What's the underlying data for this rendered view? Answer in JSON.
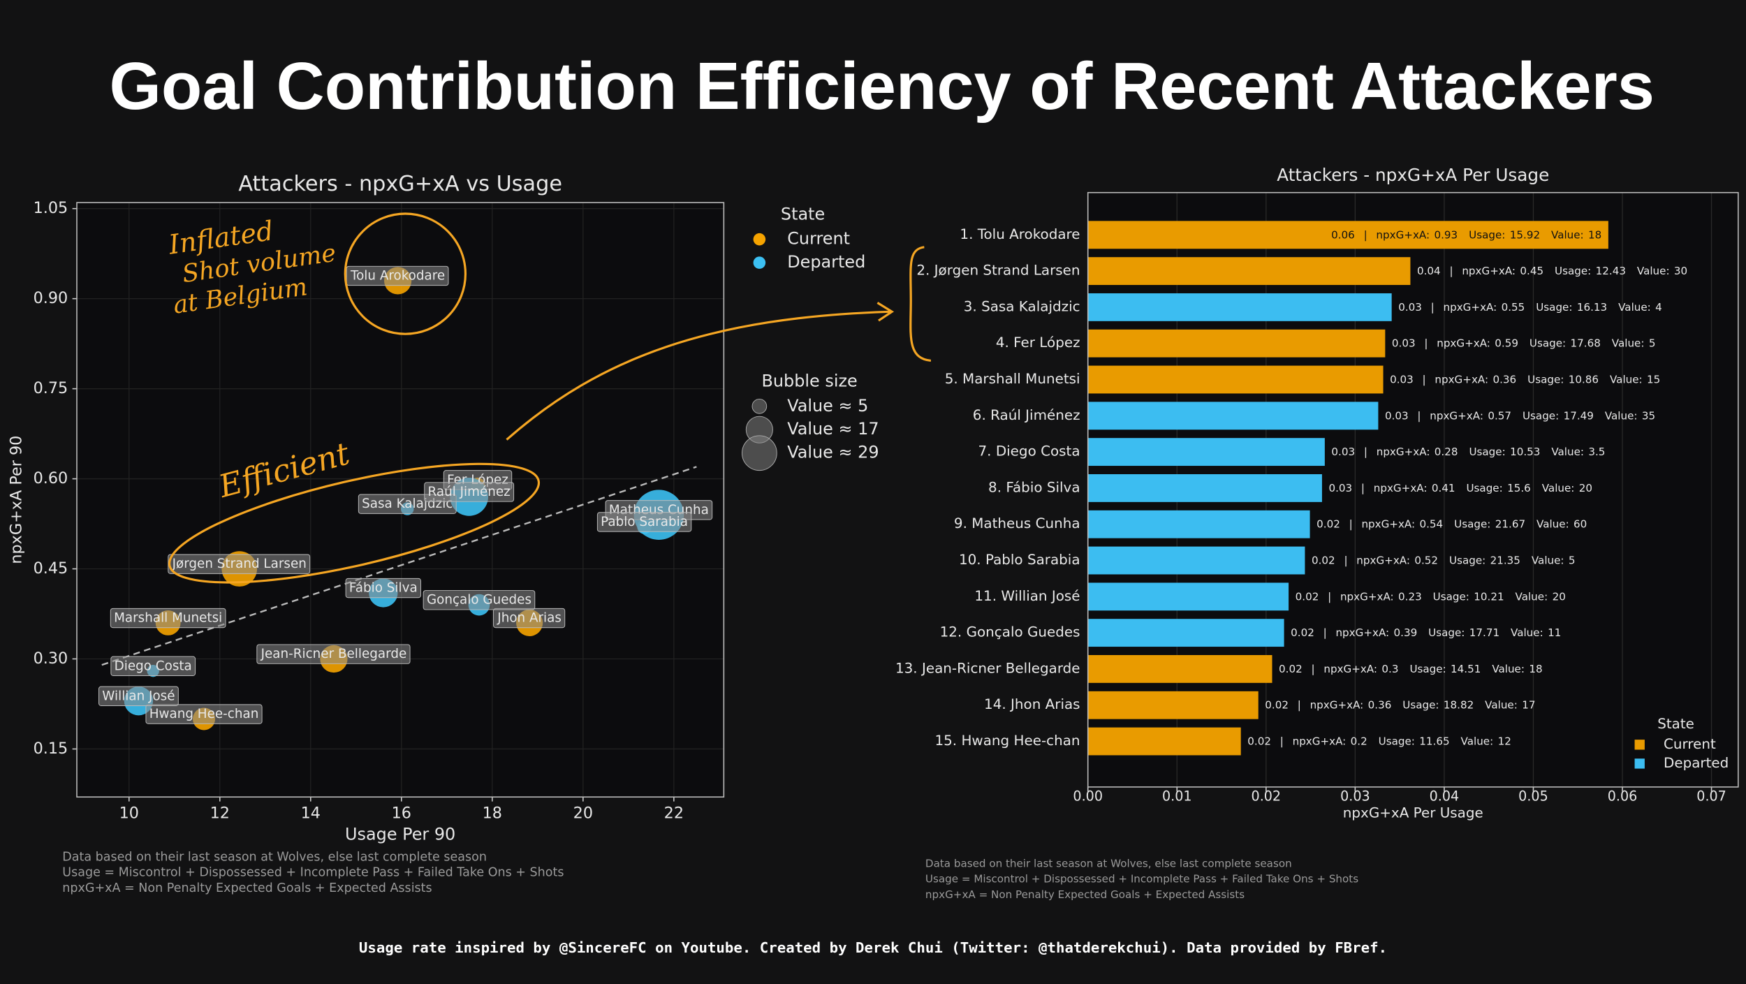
{
  "title": "Goal Contribution Efficiency of Recent Attackers",
  "footer": "Usage rate inspired by @SincereFC on Youtube. Created by Derek Chui (Twitter: @thatderekchui). Data provided by FBref.",
  "chart_data": [
    {
      "type": "scatter",
      "title": "Attackers - npxG+xA vs Usage",
      "xlabel": "Usage Per 90",
      "ylabel": "npxG+xA Per 90",
      "xlim": [
        8.85,
        23.1
      ],
      "ylim": [
        0.07,
        1.06
      ],
      "xticks": [
        10,
        12,
        14,
        16,
        18,
        20,
        22
      ],
      "yticks": [
        0.15,
        {
          "value": 0.3,
          "label": "0.30"
        },
        0.45,
        {
          "value": 0.6,
          "label": "0.60"
        },
        0.75,
        {
          "value": 0.9,
          "label": "0.90"
        },
        1.05
      ],
      "grid": true,
      "legend_title": "State",
      "series": [
        {
          "name": "Current",
          "color": "#f5a300",
          "labels": [
            "Tolu Arokodare",
            "Jørgen Strand Larsen",
            "Fer López",
            "Marshall Munetsi",
            "Jean-Ricner Bellegarde",
            "Jhon Arias",
            "Hwang Hee-chan"
          ],
          "x": [
            15.92,
            12.43,
            17.68,
            10.86,
            14.51,
            18.82,
            11.65
          ],
          "y": [
            0.93,
            0.45,
            0.59,
            0.36,
            0.3,
            0.36,
            0.2
          ],
          "sizes": [
            18,
            30,
            5,
            15,
            18,
            17,
            12
          ]
        },
        {
          "name": "Departed",
          "color": "#3cc0f2",
          "labels": [
            "Sasa Kalajdzic",
            "Raúl Jiménez",
            "Diego Costa",
            "Fábio Silva",
            "Matheus Cunha",
            "Pablo Sarabia",
            "Willian José",
            "Gonçalo Guedes"
          ],
          "x": [
            16.13,
            17.49,
            10.53,
            15.6,
            21.67,
            21.35,
            10.21,
            17.71
          ],
          "y": [
            0.55,
            0.57,
            0.28,
            0.41,
            0.54,
            0.52,
            0.23,
            0.39
          ],
          "sizes": [
            4,
            35,
            3.5,
            20,
            60,
            5,
            20,
            11
          ]
        }
      ],
      "size_legend_title": "Bubble size",
      "size_legend": [
        {
          "value": 5,
          "label": "Value ≈ 5"
        },
        {
          "value": 17,
          "label": "Value ≈ 17"
        },
        {
          "value": 29,
          "label": "Value ≈ 29"
        }
      ],
      "trend_line": {
        "x": [
          9.4,
          22.5
        ],
        "y": [
          0.29,
          0.62
        ]
      },
      "annotations": {
        "inflated": [
          "Inflated",
          "Shot volume",
          "at Belgium"
        ],
        "efficient": "Efficient"
      },
      "notes": [
        "Data based on their last season at Wolves, else last complete season",
        "Usage = Miscontrol + Dispossessed + Incomplete Pass + Failed Take Ons + Shots",
        "npxG+xA = Non Penalty Expected Goals + Expected Assists"
      ]
    },
    {
      "type": "barh",
      "title": "Attackers - npxG+xA Per Usage",
      "xlabel": "npxG+xA Per Usage",
      "xlim": [
        0,
        0.073
      ],
      "xticks": [
        {
          "value": 0,
          "label": "0.00"
        },
        0.01,
        0.02,
        0.03,
        0.04,
        0.05,
        0.06,
        0.07
      ],
      "grid": true,
      "categories": [
        "1. Tolu Arokodare",
        "2. Jørgen Strand Larsen",
        "3. Sasa Kalajdzic",
        "4. Fer López",
        "5. Marshall Munetsi",
        "6. Raúl Jiménez",
        "7. Diego Costa",
        "8. Fábio Silva",
        "9. Matheus Cunha",
        "10. Pablo Sarabia",
        "11. Willian José",
        "12. Gonçalo Guedes",
        "13. Jean-Ricner Bellegarde",
        "14. Jhon Arias",
        "15. Hwang Hee-chan"
      ],
      "values": [
        0.05842,
        0.0362,
        0.0341,
        0.03337,
        0.03315,
        0.03259,
        0.02659,
        0.02628,
        0.02492,
        0.02436,
        0.02253,
        0.02202,
        0.02068,
        0.01913,
        0.01717
      ],
      "value_labels": [
        "0.06",
        "0.04",
        "0.03",
        "0.03",
        "0.03",
        "0.03",
        "0.03",
        "0.03",
        "0.02",
        "0.02",
        "0.02",
        "0.02",
        "0.02",
        "0.02",
        "0.02"
      ],
      "colors": [
        "#e99b00",
        "#e99b00",
        "#3cbdf1",
        "#e99b00",
        "#e99b00",
        "#3cbdf1",
        "#3cbdf1",
        "#3cbdf1",
        "#3cbdf1",
        "#3cbdf1",
        "#3cbdf1",
        "#3cbdf1",
        "#e99b00",
        "#e99b00",
        "#e99b00"
      ],
      "details": {
        "separator": "|",
        "npxg_label": "npxG+xA:",
        "usage_label": "Usage:",
        "value_label": "Value:",
        "npxg": [
          0.93,
          0.45,
          0.55,
          0.59,
          0.36,
          0.57,
          0.28,
          0.41,
          0.54,
          0.52,
          0.23,
          0.39,
          0.3,
          0.36,
          0.2
        ],
        "usage": [
          15.92,
          12.43,
          16.13,
          17.68,
          10.86,
          17.49,
          10.53,
          15.6,
          21.67,
          21.35,
          10.21,
          17.71,
          14.51,
          18.82,
          11.65
        ],
        "value": [
          18,
          30,
          4,
          5,
          15,
          35,
          3.5,
          20,
          60,
          5,
          20,
          11,
          18,
          17,
          12
        ]
      },
      "legend_title": "State",
      "legend": [
        {
          "name": "Current",
          "color": "#e99b00"
        },
        {
          "name": "Departed",
          "color": "#3cbdf1"
        }
      ],
      "legend_position": "lower right",
      "notes": [
        "Data based on their last season at Wolves, else last complete season",
        "Usage = Miscontrol + Dispossessed + Incomplete Pass + Failed Take Ons + Shots",
        "npxG+xA = Non Penalty Expected Goals + Expected Assists"
      ]
    }
  ]
}
